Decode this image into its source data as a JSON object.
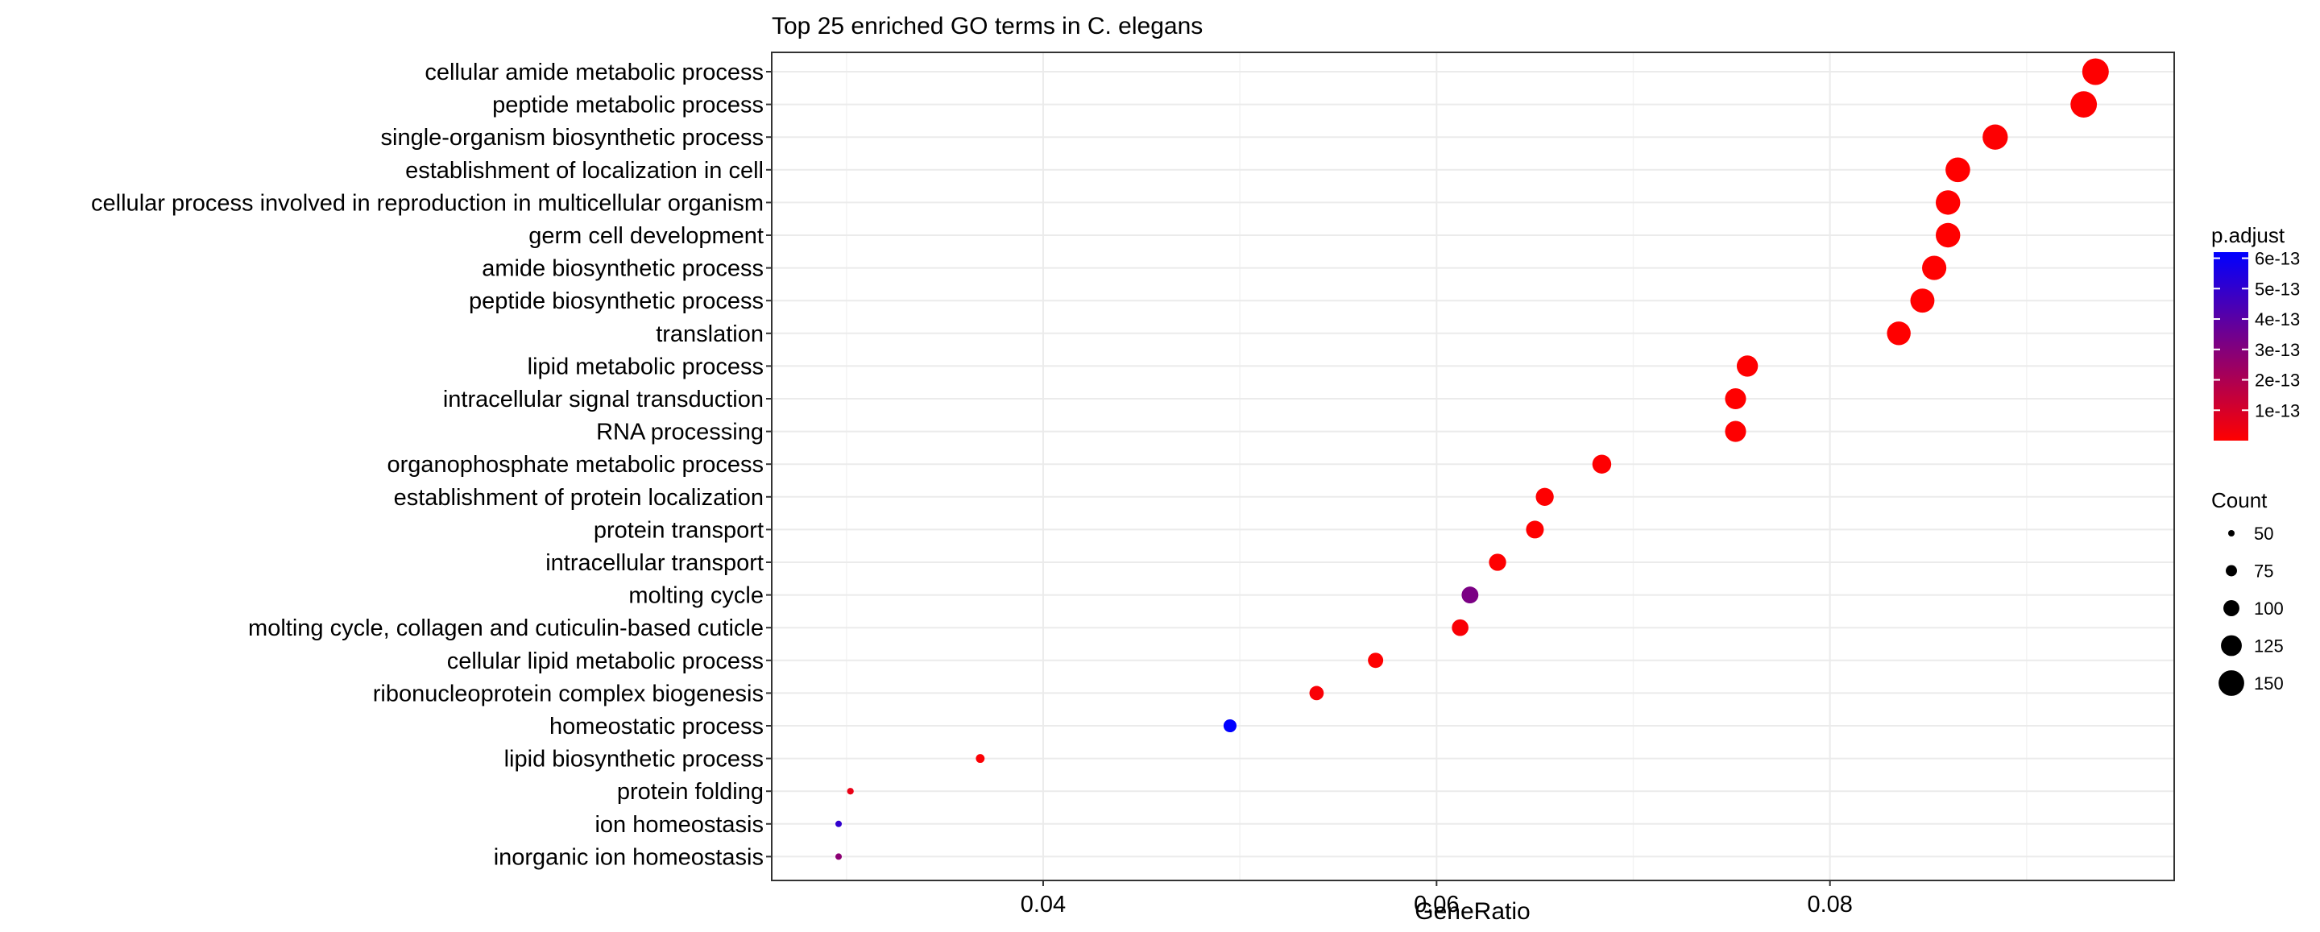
{
  "chart_data": {
    "type": "scatter",
    "title": "Top 25 enriched GO terms in C. elegans",
    "xlabel": "GeneRatio",
    "ylabel": "",
    "xlim": [
      0.0262,
      0.0975
    ],
    "x_ticks": [
      0.04,
      0.06,
      0.08
    ],
    "x_tick_labels": [
      "0.04",
      "0.06",
      "0.08"
    ],
    "grid": true,
    "categories": [
      "cellular amide metabolic process",
      "peptide metabolic process",
      "single-organism biosynthetic process",
      "establishment of localization in cell",
      "cellular process involved in reproduction in multicellular organism",
      "germ cell development",
      "amide biosynthetic process",
      "peptide biosynthetic process",
      "translation",
      "lipid metabolic process",
      "intracellular signal transduction",
      "RNA processing",
      "organophosphate metabolic process",
      "establishment of protein localization",
      "protein transport",
      "intracellular transport",
      "molting cycle",
      "molting cycle, collagen and cuticulin-based cuticle",
      "cellular lipid metabolic process",
      "ribonucleoprotein complex biogenesis",
      "homeostatic process",
      "lipid biosynthetic process",
      "protein folding",
      "ion homeostasis",
      "inorganic ion homeostasis"
    ],
    "x": [
      0.0935,
      0.0929,
      0.0884,
      0.0865,
      0.086,
      0.086,
      0.0853,
      0.0847,
      0.0835,
      0.0758,
      0.0752,
      0.0752,
      0.0684,
      0.0655,
      0.065,
      0.0631,
      0.0617,
      0.0612,
      0.0569,
      0.0539,
      0.0495,
      0.0368,
      0.0302,
      0.0296,
      0.0296
    ],
    "count": [
      155,
      154,
      148,
      145,
      144,
      144,
      143,
      142,
      140,
      127,
      126,
      126,
      115,
      110,
      109,
      106,
      104,
      103,
      96,
      91,
      84,
      62,
      51,
      50,
      50
    ],
    "p_adjust": [
      2e-15,
      2e-15,
      5e-15,
      1e-15,
      1e-15,
      1e-15,
      1e-15,
      1e-15,
      1e-15,
      2e-15,
      1e-15,
      2e-15,
      2e-15,
      2e-15,
      3e-15,
      2e-15,
      3.2e-13,
      1.5e-14,
      2e-15,
      1.5e-14,
      6.2e-13,
      1e-14,
      5e-14,
      5e-13,
      2.8e-13
    ],
    "legend": {
      "position": "right",
      "color": {
        "title": "p.adjust",
        "range": [
          0,
          6.2e-13
        ],
        "low_color": "#ff0000",
        "high_color": "#0000ff",
        "breaks": [
          6e-13,
          5e-13,
          4e-13,
          3e-13,
          2e-13,
          1e-13
        ],
        "labels": [
          "6e-13",
          "5e-13",
          "4e-13",
          "3e-13",
          "2e-13",
          "1e-13"
        ]
      },
      "size": {
        "title": "Count",
        "breaks": [
          50,
          75,
          100,
          125,
          150
        ],
        "labels": [
          "50",
          "75",
          "100",
          "125",
          "150"
        ],
        "range": [
          50,
          155
        ]
      }
    },
    "colors": {
      "background": "#ffffff",
      "grid": "#ebebeb",
      "panel_border": "#333333",
      "point_low": "#ff0000",
      "point_high": "#0000ff"
    }
  }
}
